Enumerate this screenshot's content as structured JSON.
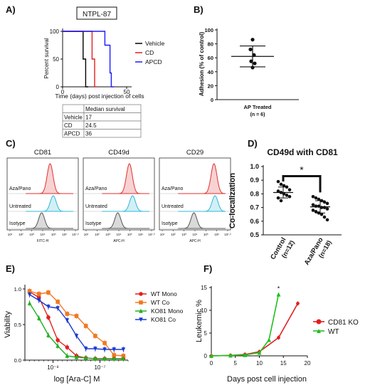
{
  "panels": {
    "A": {
      "letter": "A)",
      "chart_data": {
        "type": "line",
        "title": "NTPL-87",
        "xlabel": "Time (days) post injection of cells",
        "ylabel": "Percent survival",
        "xlim": [
          0,
          50
        ],
        "ylim": [
          0,
          100
        ],
        "xticks": [
          "0",
          "50"
        ],
        "yticks": [
          "0",
          "50",
          "100"
        ],
        "series": [
          {
            "name": "Vehicle",
            "color": "#000000",
            "x": [
              0,
              16,
              16,
              18,
              18,
              20
            ],
            "y": [
              100,
              100,
              50,
              50,
              0,
              0
            ]
          },
          {
            "name": "CD",
            "color": "#e02020",
            "x": [
              0,
              23,
              23,
              25,
              25,
              27
            ],
            "y": [
              100,
              100,
              50,
              50,
              0,
              0
            ]
          },
          {
            "name": "APCD",
            "color": "#1a1aff",
            "x": [
              0,
              33,
              33,
              37,
              37,
              38,
              38,
              40
            ],
            "y": [
              100,
              100,
              75,
              75,
              25,
              25,
              0,
              0
            ]
          }
        ],
        "table": {
          "header": [
            "",
            "Median survival"
          ],
          "rows": [
            [
              "Vehicle",
              "17"
            ],
            [
              "CD",
              "24.5"
            ],
            [
              "APCD",
              "36"
            ]
          ]
        }
      }
    },
    "B": {
      "letter": "B)",
      "chart_data": {
        "type": "scatter",
        "ylabel": "Adhesion (% of control)",
        "ylim": [
          0,
          100
        ],
        "yticks": [
          "0",
          "20",
          "40",
          "60",
          "80",
          "100"
        ],
        "category": "AP Treated",
        "category_sub": "(n = 6)",
        "values": [
          86,
          72,
          64,
          55,
          52,
          46
        ],
        "mean": 62,
        "sd_high": 77,
        "sd_low": 47
      }
    },
    "C": {
      "letter": "C)",
      "chart_data": {
        "type": "area",
        "panels": [
          {
            "title": "CD81",
            "xlabel": "FITC-H"
          },
          {
            "title": "CD49d",
            "xlabel": "APC-H"
          },
          {
            "title": "CD29",
            "xlabel": "APC-H"
          }
        ],
        "xticks": [
          "10¹",
          "10²",
          "10³",
          "10⁴",
          "10⁵",
          "10⁶",
          "10⁷.²"
        ],
        "rows": [
          "Aza/Pano",
          "Untreated",
          "Isotype"
        ],
        "row_colors": [
          "#e03030",
          "#30b8d8",
          "#555555"
        ],
        "peaks": [
          {
            "Aza/Pano": 4.8,
            "Untreated": 5.1,
            "Isotype": 4.0
          },
          {
            "Aza/Pano": 5.1,
            "Untreated": 5.4,
            "Isotype": 4.0
          },
          {
            "Aza/Pano": 5.9,
            "Untreated": 6.0,
            "Isotype": 4.0
          }
        ]
      }
    },
    "D": {
      "letter": "D)",
      "chart_data": {
        "type": "scatter",
        "title": "CD49d with CD81",
        "ylabel": "Co-localization",
        "ylim": [
          0.5,
          1.0
        ],
        "yticks": [
          "0.5",
          "0.6",
          "0.7",
          "0.8",
          "0.9",
          "1.0"
        ],
        "significance": "*",
        "groups": [
          {
            "name": "Control",
            "n": "(n=12)",
            "mean": 0.81,
            "sd": 0.04,
            "values": [
              0.89,
              0.87,
              0.86,
              0.85,
              0.83,
              0.82,
              0.81,
              0.8,
              0.79,
              0.78,
              0.77,
              0.75
            ]
          },
          {
            "name": "Aza/Pano",
            "n": "(n=18)",
            "mean": 0.705,
            "sd": 0.045,
            "values": [
              0.78,
              0.77,
              0.76,
              0.75,
              0.74,
              0.73,
              0.72,
              0.71,
              0.71,
              0.7,
              0.7,
              0.69,
              0.68,
              0.67,
              0.66,
              0.65,
              0.63,
              0.61
            ]
          }
        ]
      }
    },
    "E": {
      "letter": "E)",
      "chart_data": {
        "type": "line",
        "xlabel": "log [Ara-C] M",
        "ylabel": "Viability",
        "xscale": "log",
        "xlim": [
          -8.6,
          -6.4
        ],
        "ylim": [
          0,
          1.0
        ],
        "yticks": [
          "0.0",
          "0.5",
          "1.0"
        ],
        "xticks": [
          {
            "v": -8,
            "label": "10⁻⁸"
          },
          {
            "v": -7,
            "label": "10⁻⁷"
          }
        ],
        "series": [
          {
            "name": "WT Mono",
            "color": "#e02020",
            "marker": "circle",
            "x": [
              -8.5,
              -8.3,
              -8.1,
              -7.9,
              -7.7,
              -7.5,
              -7.3,
              -7.1,
              -6.9,
              -6.7,
              -6.5
            ],
            "y": [
              0.96,
              0.88,
              0.6,
              0.28,
              0.18,
              0.06,
              0.03,
              0.02,
              0.02,
              0.02,
              0.02
            ]
          },
          {
            "name": "WT Co",
            "color": "#f07820",
            "marker": "square",
            "x": [
              -8.5,
              -8.3,
              -8.1,
              -7.9,
              -7.7,
              -7.5,
              -7.3,
              -7.1,
              -6.9,
              -6.7,
              -6.5
            ],
            "y": [
              0.97,
              0.93,
              0.95,
              0.82,
              0.65,
              0.62,
              0.48,
              0.34,
              0.24,
              0.07,
              0.06
            ]
          },
          {
            "name": "KO81 Mono",
            "color": "#20b020",
            "marker": "triangle-up",
            "x": [
              -8.5,
              -8.3,
              -8.1,
              -7.9,
              -7.7,
              -7.5,
              -7.3,
              -7.1,
              -6.9,
              -6.7,
              -6.5
            ],
            "y": [
              0.8,
              0.59,
              0.35,
              0.2,
              0.06,
              0.04,
              0.03,
              0.02,
              0.02,
              0.02,
              0.02
            ]
          },
          {
            "name": "KO81 Co",
            "color": "#1a3ad0",
            "marker": "triangle-down",
            "x": [
              -8.5,
              -8.3,
              -8.1,
              -7.9,
              -7.7,
              -7.5,
              -7.3,
              -7.1,
              -6.9,
              -6.7,
              -6.5
            ],
            "y": [
              0.92,
              0.84,
              0.75,
              0.73,
              0.56,
              0.34,
              0.16,
              0.16,
              0.15,
              0.15,
              0.15
            ]
          }
        ]
      }
    },
    "F": {
      "letter": "F)",
      "chart_data": {
        "type": "line",
        "xlabel": "Days post cell injection",
        "ylabel": "Leukemic %",
        "xlim": [
          0,
          20
        ],
        "ylim": [
          0,
          15
        ],
        "xticks": [
          "0",
          "5",
          "10",
          "15",
          "20"
        ],
        "yticks": [
          "0",
          "5",
          "10",
          "15"
        ],
        "significance": "*",
        "series": [
          {
            "name": "CD81 KO",
            "color": "#e02020",
            "x": [
              0,
              4,
              7,
              10,
              14,
              18
            ],
            "y": [
              0,
              0.1,
              0.3,
              0.9,
              4.0,
              11.5
            ]
          },
          {
            "name": "WT",
            "color": "#20c020",
            "x": [
              0,
              4,
              7,
              10,
              12,
              14
            ],
            "y": [
              0,
              0.1,
              0.2,
              0.7,
              3.5,
              13.5
            ]
          }
        ]
      }
    }
  }
}
